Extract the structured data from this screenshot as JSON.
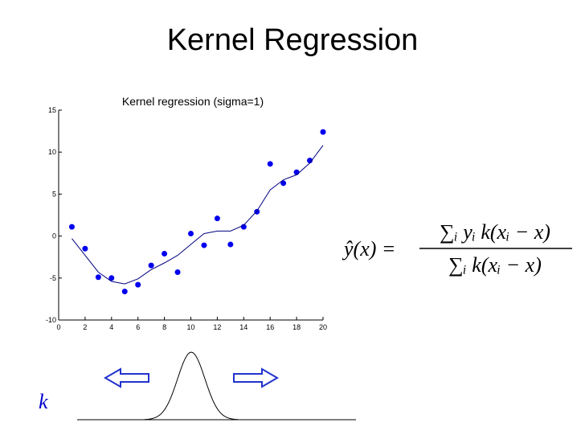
{
  "title": "Kernel Regression",
  "chart_data": {
    "type": "scatter",
    "title": "Kernel regression (sigma=1)",
    "x": [
      1,
      2,
      3,
      4,
      5,
      6,
      7,
      8,
      9,
      10,
      11,
      12,
      13,
      14,
      15,
      16,
      17,
      18,
      19,
      20
    ],
    "series": [
      {
        "color": "#0000ee",
        "style": "markers",
        "values": [
          1.1,
          -1.5,
          -4.9,
          -5.0,
          -6.6,
          -5.8,
          -3.5,
          -2.1,
          -4.3,
          0.3,
          -1.1,
          2.1,
          -1.0,
          1.1,
          2.9,
          8.6,
          6.3,
          7.6,
          9.0,
          12.4
        ]
      },
      {
        "color": "#000080",
        "style": "line",
        "values": [
          -0.3,
          -2.3,
          -4.3,
          -5.4,
          -5.7,
          -5.1,
          -4.0,
          -3.2,
          -2.3,
          -1.0,
          0.3,
          0.6,
          0.6,
          1.3,
          3.0,
          5.5,
          6.7,
          7.3,
          8.7,
          10.8
        ]
      }
    ],
    "xlim": [
      0,
      20
    ],
    "xticks": [
      0,
      2,
      4,
      6,
      8,
      10,
      12,
      14,
      16,
      18,
      20
    ],
    "ylim": [
      -10,
      15
    ],
    "yticks": [
      -10,
      -5,
      0,
      5,
      10,
      15
    ]
  },
  "formula": {
    "lhs": "ŷ(x) =",
    "numerator": "∑ᵢ yᵢ k(xᵢ − x)",
    "denominator": "∑ᵢ k(xᵢ − x)"
  },
  "kernel_label": "k"
}
